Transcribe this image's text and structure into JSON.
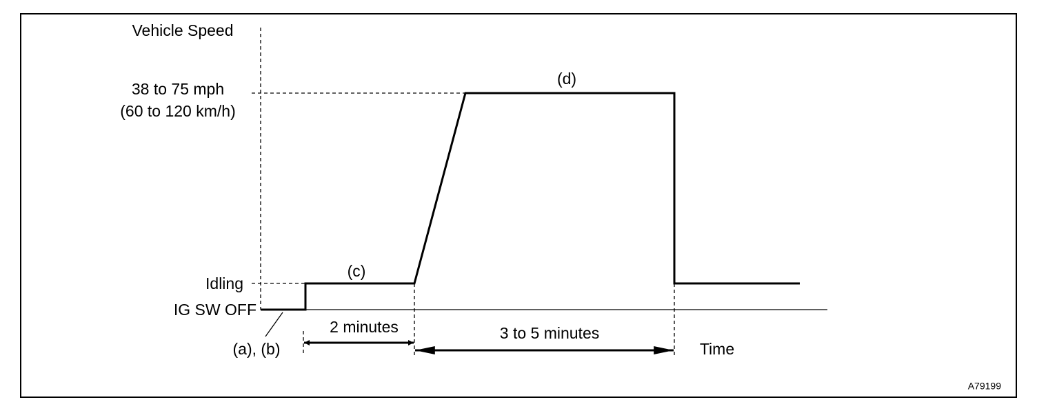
{
  "diagram": {
    "axis_label": "Vehicle Speed",
    "speed_level": "38 to 75 mph",
    "speed_level_metric": "(60 to 120 km/h)",
    "idle_level": "Idling",
    "off_level": "IG SW OFF",
    "steps": {
      "ab": "(a), (b)",
      "c": "(c)",
      "d": "(d)"
    },
    "durations": {
      "idle": "2 minutes",
      "drive": "3 to 5 minutes"
    },
    "time_label": "Time",
    "figure_code": "A79199"
  }
}
